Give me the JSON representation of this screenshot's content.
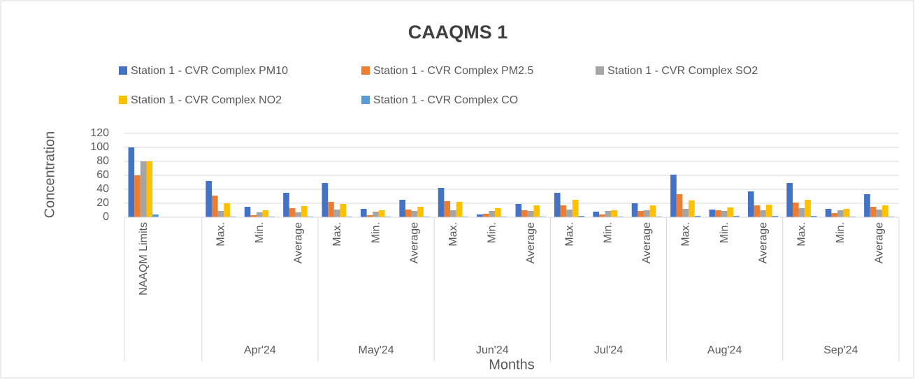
{
  "chart_data": {
    "type": "bar",
    "title": "CAAQMS 1",
    "x_label": "Months",
    "y_label": "Concentration",
    "groups": [
      {
        "label": null,
        "categories": [
          "NAAQM Limits",
          null
        ]
      },
      {
        "label": "Apr'24",
        "categories": [
          "Max.",
          "Min.",
          "Average"
        ]
      },
      {
        "label": "May'24",
        "categories": [
          "Max.",
          "Min.",
          "Average"
        ]
      },
      {
        "label": "Jun'24",
        "categories": [
          "Max.",
          "Min.",
          "Average"
        ]
      },
      {
        "label": "Jul'24",
        "categories": [
          "Max.",
          "Min.",
          "Average"
        ]
      },
      {
        "label": "Aug'24",
        "categories": [
          "Max.",
          "Min.",
          "Average"
        ]
      },
      {
        "label": "Sep'24",
        "categories": [
          "Max.",
          "Min.",
          "Average"
        ]
      }
    ],
    "series": [
      {
        "name": "Station 1 - CVR Complex  PM10",
        "color": "#4472c4",
        "values": [
          100,
          null,
          52,
          15,
          35,
          49,
          12,
          25,
          42,
          4,
          19,
          35,
          8,
          20,
          61,
          11,
          37,
          49,
          12,
          33
        ]
      },
      {
        "name": "Station 1 - CVR Complex  PM2.5",
        "color": "#ed7d31",
        "values": [
          60,
          null,
          31,
          3,
          13,
          22,
          3,
          11,
          23,
          5,
          10,
          17,
          4,
          9,
          33,
          10,
          17,
          21,
          6,
          15
        ]
      },
      {
        "name": "Station 1 - CVR Complex  SO2",
        "color": "#a5a5a5",
        "values": [
          80,
          null,
          9,
          7,
          7,
          11,
          8,
          9,
          10,
          9,
          9,
          11,
          9,
          10,
          12,
          9,
          10,
          13,
          10,
          11
        ]
      },
      {
        "name": "Station 1 - CVR Complex  NO2",
        "color": "#ffc000",
        "values": [
          80,
          null,
          20,
          10,
          16,
          19,
          10,
          15,
          22,
          13,
          17,
          25,
          10,
          17,
          24,
          14,
          18,
          25,
          12,
          17
        ]
      },
      {
        "name": "Station 1 - CVR Complex  CO",
        "color": "#5b9bd5",
        "values": [
          4,
          null,
          1,
          1,
          1,
          1,
          1,
          1,
          1,
          1,
          1,
          2,
          1,
          1,
          2,
          2,
          2,
          2,
          1,
          1
        ]
      }
    ],
    "ylim": [
      0,
      120
    ],
    "yticks": [
      0,
      20,
      40,
      60,
      80,
      100,
      120
    ],
    "grid": true,
    "legend": "top"
  }
}
